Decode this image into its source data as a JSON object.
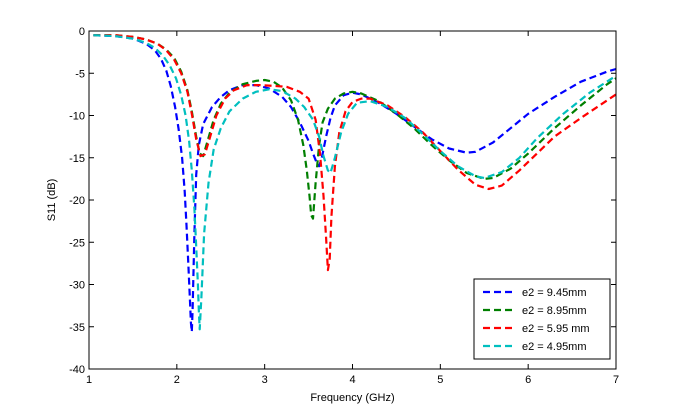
{
  "chart_data": {
    "type": "line",
    "title": "",
    "xlabel": "Frequency (GHz)",
    "ylabel": "S11 (dB)",
    "xlim": [
      1,
      7
    ],
    "ylim": [
      -40,
      0
    ],
    "xticks": [
      1,
      2,
      3,
      4,
      5,
      6,
      7
    ],
    "yticks": [
      0,
      -5,
      -10,
      -15,
      -20,
      -25,
      -30,
      -35,
      -40
    ],
    "grid": false,
    "legend_position": "bottom-right",
    "series": [
      {
        "name": "e2 = 9.45mm",
        "color": "#0000ff",
        "x": [
          1.05,
          1.3,
          1.5,
          1.65,
          1.75,
          1.82,
          1.88,
          1.93,
          1.98,
          2.02,
          2.06,
          2.09,
          2.11,
          2.13,
          2.15,
          2.16,
          2.17,
          2.18,
          2.2,
          2.22,
          2.25,
          2.3,
          2.4,
          2.5,
          2.6,
          2.75,
          2.9,
          3.05,
          3.2,
          3.3,
          3.4,
          3.5,
          3.55,
          3.6,
          3.62,
          3.65,
          3.7,
          3.75,
          3.8,
          3.9,
          4.0,
          4.1,
          4.3,
          4.5,
          4.7,
          4.9,
          5.1,
          5.3,
          5.4,
          5.6,
          5.8,
          6.0,
          6.3,
          6.6,
          6.9,
          7.0
        ],
        "y": [
          -0.5,
          -0.6,
          -0.9,
          -1.5,
          -2.3,
          -3.3,
          -4.7,
          -6.5,
          -9.0,
          -11.6,
          -15.0,
          -19.0,
          -23.0,
          -27.5,
          -32.0,
          -34.5,
          -35.6,
          -33.0,
          -24.0,
          -17.0,
          -13.5,
          -11.0,
          -9.0,
          -7.8,
          -7.0,
          -6.4,
          -6.4,
          -6.8,
          -7.8,
          -9.0,
          -10.8,
          -13.0,
          -14.5,
          -15.8,
          -16.0,
          -15.0,
          -12.5,
          -10.3,
          -8.8,
          -7.6,
          -7.3,
          -7.5,
          -8.5,
          -9.8,
          -11.3,
          -12.8,
          -13.9,
          -14.4,
          -14.3,
          -13.2,
          -11.5,
          -9.8,
          -7.8,
          -6.0,
          -4.8,
          -4.5
        ]
      },
      {
        "name": "e2 = 8.95mm",
        "color": "#007f00",
        "x": [
          1.05,
          1.3,
          1.5,
          1.65,
          1.78,
          1.88,
          1.97,
          2.05,
          2.12,
          2.17,
          2.22,
          2.26,
          2.3,
          2.35,
          2.42,
          2.5,
          2.6,
          2.75,
          2.9,
          3.0,
          3.1,
          3.2,
          3.3,
          3.38,
          3.44,
          3.48,
          3.51,
          3.53,
          3.55,
          3.58,
          3.62,
          3.66,
          3.72,
          3.8,
          3.9,
          4.0,
          4.1,
          4.3,
          4.5,
          4.7,
          4.9,
          5.1,
          5.3,
          5.5,
          5.6,
          5.8,
          6.0,
          6.3,
          6.6,
          6.9,
          7.0
        ],
        "y": [
          -0.5,
          -0.5,
          -0.7,
          -1.0,
          -1.5,
          -2.2,
          -3.2,
          -4.8,
          -7.0,
          -9.5,
          -12.5,
          -14.5,
          -14.8,
          -13.0,
          -10.5,
          -8.6,
          -7.3,
          -6.3,
          -5.9,
          -5.8,
          -6.0,
          -6.7,
          -8.2,
          -10.5,
          -13.5,
          -16.5,
          -19.5,
          -21.8,
          -22.2,
          -18.0,
          -13.5,
          -10.8,
          -9.2,
          -8.0,
          -7.4,
          -7.2,
          -7.4,
          -8.3,
          -9.8,
          -11.5,
          -13.5,
          -15.3,
          -16.8,
          -17.5,
          -17.4,
          -16.3,
          -14.5,
          -11.5,
          -8.8,
          -6.3,
          -5.6
        ]
      },
      {
        "name": "e2 = 5.95 mm",
        "color": "#ff0000",
        "x": [
          1.05,
          1.3,
          1.5,
          1.65,
          1.78,
          1.88,
          1.97,
          2.05,
          2.12,
          2.17,
          2.22,
          2.27,
          2.32,
          2.38,
          2.45,
          2.55,
          2.65,
          2.8,
          2.95,
          3.1,
          3.25,
          3.4,
          3.5,
          3.58,
          3.63,
          3.67,
          3.7,
          3.72,
          3.74,
          3.76,
          3.8,
          3.85,
          3.92,
          4.0,
          4.1,
          4.2,
          4.4,
          4.6,
          4.8,
          5.0,
          5.2,
          5.4,
          5.55,
          5.7,
          5.9,
          6.1,
          6.3,
          6.6,
          6.9,
          7.0
        ],
        "y": [
          -0.5,
          -0.5,
          -0.7,
          -1.0,
          -1.5,
          -2.3,
          -3.4,
          -5.0,
          -7.2,
          -9.8,
          -12.8,
          -14.8,
          -14.6,
          -12.5,
          -10.0,
          -8.0,
          -7.0,
          -6.4,
          -6.4,
          -6.5,
          -6.6,
          -7.2,
          -8.0,
          -10.5,
          -14.5,
          -19.5,
          -24.5,
          -28.3,
          -27.0,
          -22.0,
          -16.0,
          -12.0,
          -9.5,
          -8.4,
          -8.0,
          -8.0,
          -8.8,
          -10.2,
          -12.0,
          -14.2,
          -16.4,
          -18.2,
          -18.7,
          -18.3,
          -16.5,
          -14.5,
          -12.5,
          -10.3,
          -8.2,
          -7.5
        ]
      },
      {
        "name": "e2 = 4.95mm",
        "color": "#00bfbf",
        "x": [
          1.05,
          1.3,
          1.5,
          1.65,
          1.75,
          1.84,
          1.92,
          1.99,
          2.05,
          2.1,
          2.14,
          2.17,
          2.2,
          2.22,
          2.24,
          2.25,
          2.26,
          2.28,
          2.31,
          2.36,
          2.42,
          2.5,
          2.6,
          2.75,
          2.9,
          3.05,
          3.2,
          3.35,
          3.45,
          3.55,
          3.62,
          3.67,
          3.72,
          3.75,
          3.8,
          3.87,
          3.95,
          4.05,
          4.2,
          4.4,
          4.6,
          4.8,
          5.0,
          5.2,
          5.4,
          5.5,
          5.7,
          5.9,
          6.1,
          6.4,
          6.7,
          7.0
        ],
        "y": [
          -0.5,
          -0.6,
          -0.9,
          -1.4,
          -2.0,
          -2.9,
          -4.1,
          -5.6,
          -7.6,
          -10.0,
          -13.0,
          -16.5,
          -21.0,
          -25.5,
          -30.0,
          -33.0,
          -35.3,
          -31.5,
          -24.0,
          -18.0,
          -14.0,
          -11.5,
          -9.5,
          -8.0,
          -7.2,
          -6.9,
          -7.1,
          -8.0,
          -9.0,
          -10.5,
          -12.5,
          -14.8,
          -16.5,
          -16.8,
          -15.0,
          -12.0,
          -9.8,
          -8.5,
          -8.3,
          -9.0,
          -10.3,
          -12.2,
          -14.2,
          -16.0,
          -17.2,
          -17.4,
          -16.7,
          -15.0,
          -12.7,
          -9.8,
          -7.3,
          -5.3
        ]
      }
    ]
  }
}
